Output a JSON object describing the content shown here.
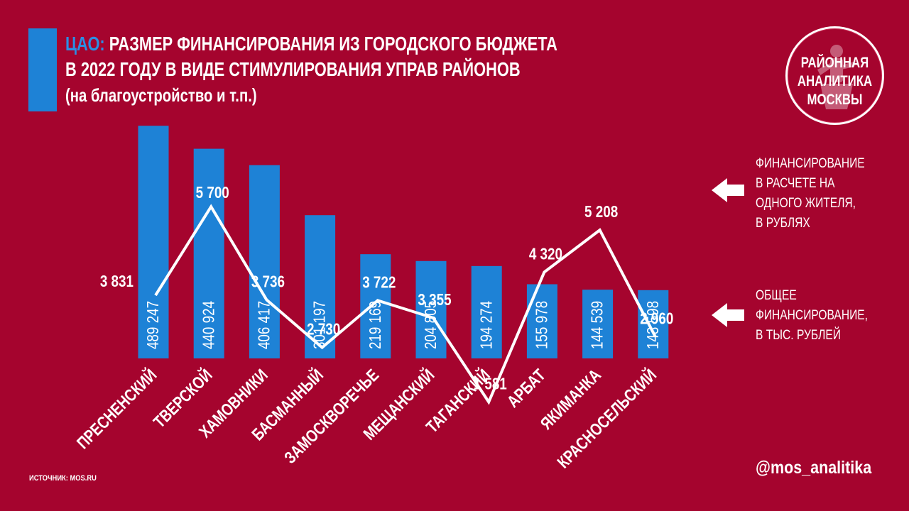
{
  "title": {
    "accent": "ЦАО:",
    "line1": "РАЗМЕР ФИНАНСИРОВАНИЯ ИЗ ГОРОДСКОГО БЮДЖЕТА",
    "line2": "В 2022 ГОДУ В ВИДЕ СТИМУЛИРОВАНИЯ УПРАВ РАЙОНОВ",
    "line3": "(на благоустройство и т.п.)"
  },
  "logo": {
    "line1": "РАЙОННАЯ",
    "line2": "АНАЛИТИКА",
    "line3": "МОСКВЫ"
  },
  "legend": {
    "line_label": [
      "ФИНАНСИРОВАНИЕ",
      "В РАСЧЕТЕ НА",
      "ОДНОГО ЖИТЕЛЯ,",
      "В РУБЛЯХ"
    ],
    "bar_label": [
      "ОБЩЕЕ",
      "ФИНАНСИРОВАНИЕ,",
      "В ТЫС. РУБЛЕЙ"
    ]
  },
  "source": "ИСТОЧНИК: MOS.RU",
  "handle": "@mos_analitika",
  "colors": {
    "background": "#a5042e",
    "bar": "#1e82d6",
    "line": "#ffffff",
    "text": "#ffffff"
  },
  "chart_data": {
    "type": "bar+line",
    "categories": [
      "ПРЕСНЕНСКИЙ",
      "ТВЕРСКОЙ",
      "ХАМОВНИКИ",
      "БАСМАННЫЙ",
      "ЗАМОСКВОРЕЧЬЕ",
      "МЕЩАНСКИЙ",
      "ТАГАНСКИЙ",
      "АРБАТ",
      "ЯКИМАНКА",
      "КРАСНОСЕЛЬСКИЙ"
    ],
    "bars": {
      "values": [
        489247,
        440924,
        406417,
        301197,
        219169,
        204805,
        194274,
        155978,
        144539,
        143598
      ],
      "labels": [
        "489 247",
        "440 924",
        "406 417",
        "301 197",
        "219 169",
        "204 805",
        "194 274",
        "155 978",
        "144 539",
        "143 598"
      ]
    },
    "line": {
      "values": [
        3831,
        5700,
        3736,
        2730,
        3722,
        3355,
        1581,
        4320,
        5208,
        2960
      ],
      "labels": [
        "3 831",
        "5 700",
        "3 736",
        "2 730",
        "3 722",
        "3 355",
        "1 581",
        "4 320",
        "5 208",
        "2 960"
      ]
    }
  }
}
